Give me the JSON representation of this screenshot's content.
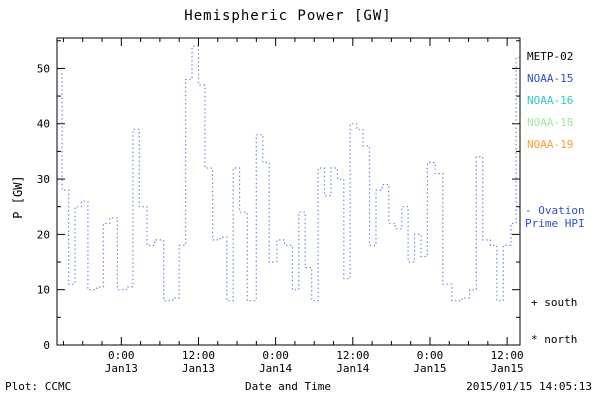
{
  "title": "Hemispheric Power [GW]",
  "footer": {
    "left": "Plot: CCMC",
    "center": "Date and Time",
    "right": "2015/01/15 14:05:13"
  },
  "legend": {
    "satellites": [
      {
        "label": "METP-02",
        "color": "#000000"
      },
      {
        "label": "NOAA-15",
        "color": "#2b4fd0"
      },
      {
        "label": "NOAA-16",
        "color": "#2fc8c8"
      },
      {
        "label": "NOAA-18",
        "color": "#9fe89f"
      },
      {
        "label": "NOAA-19",
        "color": "#ff9d2e"
      }
    ],
    "ovation_line1": "- Ovation",
    "ovation_line2": "Prime HPI",
    "ovation_color": "#2b4fd0",
    "south": "+ south",
    "north": "* north"
  },
  "chart_data": {
    "type": "line",
    "subtype": "step-dotted",
    "title": "Hemispheric Power [GW]",
    "xlabel": "Date and Time",
    "ylabel": "P [GW]",
    "series_name": "Ovation Prime HPI",
    "line_color": "#6f8fe0",
    "grid": false,
    "legend_position": "right",
    "xlim_hours": [
      0,
      72
    ],
    "ylim": [
      0,
      55.5
    ],
    "y_ticks": [
      0,
      10,
      20,
      30,
      40,
      50
    ],
    "x_ticks": [
      {
        "hour": 10,
        "time": "0:00",
        "date": "Jan13"
      },
      {
        "hour": 22,
        "time": "12:00",
        "date": "Jan13"
      },
      {
        "hour": 34,
        "time": "0:00",
        "date": "Jan14"
      },
      {
        "hour": 46,
        "time": "12:00",
        "date": "Jan14"
      },
      {
        "hour": 58,
        "time": "0:00",
        "date": "Jan15"
      },
      {
        "hour": 70,
        "time": "12:00",
        "date": "Jan15"
      }
    ],
    "x_hours": [
      0,
      0.8,
      1.8,
      2.8,
      3.8,
      4.8,
      6.2,
      7.2,
      8.2,
      9.4,
      10.8,
      11.8,
      12.8,
      14.0,
      15.2,
      16.6,
      18.0,
      19.0,
      20.0,
      21.0,
      22.0,
      23.0,
      24.2,
      25.4,
      26.4,
      27.4,
      28.4,
      29.6,
      31.0,
      32.0,
      33.0,
      34.2,
      35.4,
      36.6,
      37.6,
      38.6,
      39.6,
      40.6,
      41.6,
      42.6,
      43.6,
      44.6,
      45.6,
      46.6,
      47.6,
      48.6,
      49.6,
      50.6,
      51.6,
      52.6,
      53.6,
      54.6,
      55.6,
      56.6,
      57.6,
      58.8,
      60.0,
      61.4,
      63.0,
      64.2,
      65.2,
      66.2,
      67.4,
      68.4,
      69.4,
      70.6,
      71.4
    ],
    "y_gw": [
      49,
      28,
      11,
      25,
      26,
      10,
      10.5,
      22,
      23,
      10,
      10.5,
      39,
      25,
      18,
      19,
      8,
      8.5,
      18,
      48,
      54,
      47,
      32,
      19,
      19.5,
      8,
      32,
      24,
      8,
      38,
      33,
      15,
      19,
      18,
      10,
      24,
      14,
      8,
      32,
      27,
      32,
      30,
      12,
      40,
      39,
      36,
      18,
      28,
      29,
      22,
      21,
      25,
      15,
      20,
      16,
      33,
      31,
      11,
      8,
      8.5,
      10,
      34,
      19,
      18,
      8,
      18,
      22,
      52
    ]
  }
}
